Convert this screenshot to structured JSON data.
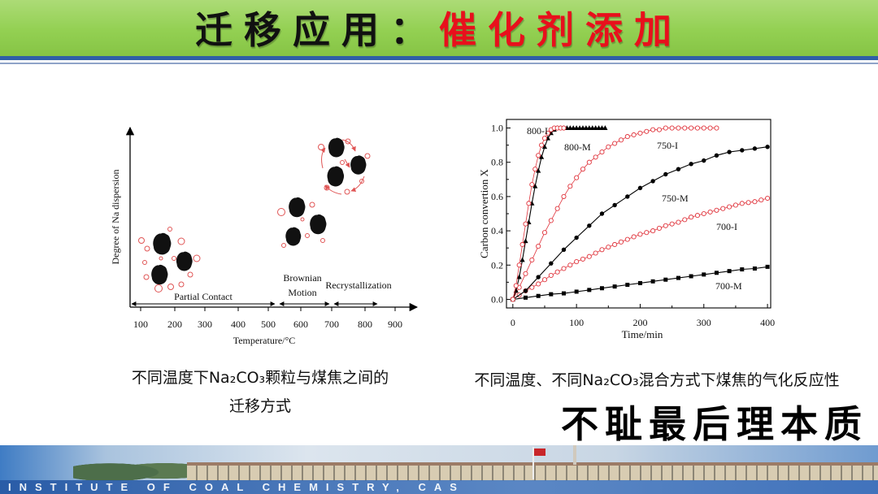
{
  "slide": {
    "title_prefix": "迁移应用：",
    "title_highlight": "催化剂添加",
    "caption_left_line1": "不同温度下Na₂CO₃颗粒与煤焦之间的",
    "caption_left_line2": "迁移方式",
    "caption_right": "不同温度、不同Na₂CO₃混合方式下煤焦的气化反应性",
    "tagline": "不耻最后理本质",
    "footer_text": "INSTITUTE OF COAL CHEMISTRY, CAS"
  },
  "colors": {
    "header_green": "#92d050",
    "title_black": "#111111",
    "title_red": "#e8101c",
    "divider_blue": "#2f5fa7",
    "na_red": "#e05555",
    "char_black": "#111111"
  },
  "diagram": {
    "ylabel": "Degree of Na dispersion",
    "xlabel": "Temperature/°C",
    "xticks": [
      "100",
      "200",
      "300",
      "400",
      "500",
      "600",
      "700",
      "800",
      "900"
    ],
    "stages": {
      "partial": "Partial Contact",
      "brownian_line1": "Brownian",
      "brownian_line2": "Motion",
      "recrystallization": "Recrystallization"
    }
  },
  "chart_data": [
    {
      "type": "line",
      "title": "",
      "xlabel": "Time/min",
      "ylabel": "Carbon convertion X",
      "xlim": [
        -10,
        405
      ],
      "ylim": [
        -0.05,
        1.05
      ],
      "xticks": [
        0,
        100,
        200,
        300,
        400
      ],
      "xtick_labels": [
        "0",
        "100",
        "200",
        "300",
        "400"
      ],
      "yticks": [
        0,
        0.2,
        0.4,
        0.6,
        0.8,
        1.0
      ],
      "ytick_labels": [
        "0.0",
        "0.2",
        "0.4",
        "0.6",
        "0.8",
        "1.0"
      ],
      "grid": false,
      "series": [
        {
          "name": "800-I",
          "color": "#e0343c",
          "marker": "open-circle",
          "x": [
            0,
            5,
            10,
            15,
            20,
            25,
            30,
            35,
            40,
            45,
            50,
            55,
            60,
            65,
            70,
            75,
            80
          ],
          "y": [
            0,
            0.08,
            0.2,
            0.32,
            0.44,
            0.56,
            0.67,
            0.76,
            0.84,
            0.9,
            0.94,
            0.97,
            0.99,
            1.0,
            1.0,
            1.0,
            1.0
          ]
        },
        {
          "name": "800-M",
          "color": "#000000",
          "marker": "filled-triangle",
          "x": [
            0,
            5,
            10,
            15,
            20,
            25,
            30,
            35,
            40,
            45,
            50,
            55,
            60,
            65,
            70,
            75,
            80,
            85,
            90,
            95,
            100,
            105,
            110,
            115,
            120,
            125,
            130,
            135,
            140,
            145
          ],
          "y": [
            0,
            0.05,
            0.13,
            0.23,
            0.34,
            0.45,
            0.56,
            0.66,
            0.75,
            0.83,
            0.89,
            0.94,
            0.97,
            0.99,
            1.0,
            1.0,
            1.0,
            1.0,
            1.0,
            1.0,
            1.0,
            1.0,
            1.0,
            1.0,
            1.0,
            1.0,
            1.0,
            1.0,
            1.0,
            1.0
          ]
        },
        {
          "name": "750-I",
          "color": "#e0343c",
          "marker": "open-circle",
          "x": [
            0,
            10,
            20,
            30,
            40,
            50,
            60,
            70,
            80,
            90,
            100,
            110,
            120,
            130,
            140,
            150,
            160,
            170,
            180,
            190,
            200,
            210,
            220,
            230,
            240,
            250,
            260,
            270,
            280,
            290,
            300,
            310,
            320
          ],
          "y": [
            0,
            0.07,
            0.15,
            0.23,
            0.31,
            0.39,
            0.46,
            0.53,
            0.6,
            0.66,
            0.71,
            0.76,
            0.8,
            0.83,
            0.86,
            0.89,
            0.91,
            0.93,
            0.95,
            0.96,
            0.97,
            0.98,
            0.99,
            0.99,
            1.0,
            1.0,
            1.0,
            1.0,
            1.0,
            1.0,
            1.0,
            1.0,
            1.0
          ]
        },
        {
          "name": "750-M",
          "color": "#000000",
          "marker": "filled-circle",
          "x": [
            0,
            20,
            40,
            60,
            80,
            100,
            120,
            140,
            160,
            180,
            200,
            220,
            240,
            260,
            280,
            300,
            320,
            340,
            360,
            380,
            400
          ],
          "y": [
            0,
            0.05,
            0.13,
            0.21,
            0.29,
            0.36,
            0.43,
            0.5,
            0.55,
            0.6,
            0.65,
            0.69,
            0.73,
            0.76,
            0.79,
            0.81,
            0.84,
            0.86,
            0.87,
            0.88,
            0.89
          ]
        },
        {
          "name": "700-I",
          "color": "#e0343c",
          "marker": "open-circle",
          "x": [
            0,
            10,
            20,
            30,
            40,
            50,
            60,
            70,
            80,
            90,
            100,
            110,
            120,
            130,
            140,
            150,
            160,
            170,
            180,
            190,
            200,
            210,
            220,
            230,
            240,
            250,
            260,
            270,
            280,
            290,
            300,
            310,
            320,
            330,
            340,
            350,
            360,
            370,
            380,
            390,
            400
          ],
          "y": [
            0,
            0.025,
            0.05,
            0.07,
            0.09,
            0.115,
            0.14,
            0.16,
            0.18,
            0.2,
            0.22,
            0.235,
            0.25,
            0.27,
            0.29,
            0.305,
            0.32,
            0.335,
            0.35,
            0.365,
            0.38,
            0.39,
            0.4,
            0.415,
            0.43,
            0.44,
            0.45,
            0.465,
            0.48,
            0.49,
            0.5,
            0.51,
            0.52,
            0.53,
            0.54,
            0.55,
            0.56,
            0.565,
            0.57,
            0.58,
            0.59
          ]
        },
        {
          "name": "700-M",
          "color": "#000000",
          "marker": "filled-square",
          "x": [
            0,
            20,
            40,
            60,
            80,
            100,
            120,
            140,
            160,
            180,
            200,
            220,
            240,
            260,
            280,
            300,
            320,
            340,
            360,
            380,
            400
          ],
          "y": [
            0,
            0.01,
            0.02,
            0.03,
            0.035,
            0.045,
            0.055,
            0.065,
            0.075,
            0.085,
            0.095,
            0.105,
            0.115,
            0.125,
            0.135,
            0.145,
            0.155,
            0.165,
            0.175,
            0.18,
            0.19
          ]
        }
      ]
    }
  ]
}
